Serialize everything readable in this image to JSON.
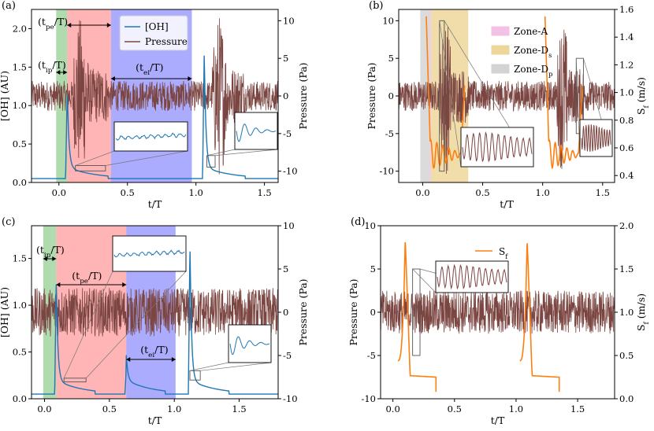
{
  "colors": {
    "oh": "#1f77b4",
    "pressure": "#7b4541",
    "sf": "#ff7f0e",
    "zone_ip": "#2ca02c",
    "zone_pe": "#ff3c3c",
    "zone_ei": "#2626ff",
    "zone_a": "#e377c2",
    "zone_ds": "#d9a520",
    "zone_dp": "#a0a0a0"
  },
  "chart_data": [
    {
      "id": "a",
      "type": "line",
      "panel_label": "(a)",
      "xlabel": "t/T",
      "ylabel_left": "[OH] (AU)",
      "ylabel_right": "Pressure (Pa)",
      "xlim": [
        -0.2,
        1.6
      ],
      "ylim_left": [
        0,
        2.25
      ],
      "ylim_right": [
        -11.5,
        11.5
      ],
      "xticks": [
        "0.0",
        "0.5",
        "1.0",
        "1.5"
      ],
      "xtick_values": [
        0,
        0.5,
        1.0,
        1.5
      ],
      "yticks_left": [
        "0.0",
        "0.5",
        "1.0",
        "1.5",
        "2.0"
      ],
      "ytick_values_left": [
        0,
        0.5,
        1.0,
        1.5,
        2.0
      ],
      "yticks_right": [
        "-10",
        "-5",
        "0",
        "5",
        "10"
      ],
      "ytick_values_right": [
        -10,
        -5,
        0,
        5,
        10
      ],
      "legend": [
        "[OH]",
        "Pressure"
      ],
      "zones": [
        {
          "name": "ip",
          "x0": -0.02,
          "x1": 0.06
        },
        {
          "name": "pe",
          "x0": 0.06,
          "x1": 0.38
        },
        {
          "name": "ei",
          "x0": 0.38,
          "x1": 0.97
        }
      ],
      "annotations": [
        {
          "label": "(tpe/T)",
          "base": "(t",
          "sub": "pe",
          "tail": "/T)"
        },
        {
          "label": "(tip/T)",
          "base": "(t",
          "sub": "ip",
          "tail": "/T)"
        },
        {
          "label": "(tei/T)",
          "base": "(t",
          "sub": "ei",
          "tail": "/T)"
        }
      ],
      "oh_series": {
        "baseline": 0.05,
        "peaks": [
          {
            "t": 0.06,
            "v": 1.15
          },
          {
            "t": 1.06,
            "v": 1.65
          }
        ]
      },
      "pressure_series": {
        "noise_amplitude": 2,
        "bursts": [
          {
            "t0": 0.1,
            "t1": 0.36,
            "amp": 10.5
          },
          {
            "t0": 1.12,
            "t1": 1.36,
            "amp": 11
          }
        ]
      }
    },
    {
      "id": "b",
      "type": "line",
      "panel_label": "(b)",
      "xlabel": "t/T",
      "ylabel_left": "Pressure (Pa)",
      "ylabel_right": "Sf (m/s)",
      "ylabel_right_base": "S",
      "ylabel_right_sub": "f",
      "ylabel_right_tail": " (m/s)",
      "xlim": [
        -0.2,
        1.6
      ],
      "ylim_left": [
        -11.5,
        11.5
      ],
      "ylim_right": [
        0.35,
        1.6
      ],
      "xticks": [
        "0.0",
        "0.5",
        "1.0",
        "1.5"
      ],
      "xtick_values": [
        0,
        0.5,
        1.0,
        1.5
      ],
      "yticks_left": [
        "-10",
        "-5",
        "0",
        "5",
        "10"
      ],
      "ytick_values_left": [
        -10,
        -5,
        0,
        5,
        10
      ],
      "yticks_right": [
        "0.4",
        "0.6",
        "0.8",
        "1.0",
        "1.2",
        "1.4",
        "1.6"
      ],
      "ytick_values_right": [
        0.4,
        0.6,
        0.8,
        1.0,
        1.2,
        1.4,
        1.6
      ],
      "legend": [
        "Zone-A",
        "Zone-Ds",
        "Zone-Dp"
      ],
      "legend_parts": [
        {
          "base": "Zone-A",
          "sub": ""
        },
        {
          "base": "Zone-D",
          "sub": "s"
        },
        {
          "base": "Zone-D",
          "sub": "p"
        }
      ],
      "zones": [
        {
          "name": "dp",
          "x0": -0.02,
          "x1": 0.06
        },
        {
          "name": "a",
          "x0": 0.06,
          "x1": 0.07
        },
        {
          "name": "ds",
          "x0": 0.07,
          "x1": 0.38
        }
      ],
      "pressure_series": {
        "noise_amplitude": 2,
        "bursts": [
          {
            "t0": 0.14,
            "t1": 0.38,
            "amp": 10.5
          },
          {
            "t0": 1.12,
            "t1": 1.34,
            "amp": 10.5
          }
        ]
      }
    },
    {
      "id": "c",
      "type": "line",
      "panel_label": "(c)",
      "xlabel": "t/T",
      "ylabel_left": "[OH] (AU)",
      "ylabel_right": "Pressure (Pa)",
      "xlim": [
        -0.1,
        1.8
      ],
      "ylim_left": [
        0,
        1.85
      ],
      "ylim_right": [
        -10,
        10
      ],
      "xticks": [
        "0.0",
        "0.5",
        "1.0",
        "1.5"
      ],
      "xtick_values": [
        0,
        0.5,
        1.0,
        1.5
      ],
      "yticks_left": [
        "0.0",
        "0.5",
        "1.0",
        "1.5"
      ],
      "ytick_values_left": [
        0,
        0.5,
        1.0,
        1.5
      ],
      "yticks_right": [
        "-10",
        "-5",
        "0",
        "5",
        "10"
      ],
      "ytick_values_right": [
        -10,
        -5,
        0,
        5,
        10
      ],
      "zones": [
        {
          "name": "ip",
          "x0": -0.01,
          "x1": 0.09
        },
        {
          "name": "pe",
          "x0": 0.09,
          "x1": 0.63
        },
        {
          "name": "ei",
          "x0": 0.63,
          "x1": 1.01
        }
      ],
      "annotations": [
        {
          "label": "(tip/T)",
          "base": "(t",
          "sub": "ip",
          "tail": "/T)"
        },
        {
          "label": "(tpe/T)",
          "base": "(t",
          "sub": "pe",
          "tail": "/T)"
        },
        {
          "label": "(tei/T)",
          "base": "(t",
          "sub": "ei",
          "tail": "/T)"
        }
      ],
      "oh_series": {
        "baseline": 0.05,
        "peaks": [
          {
            "t": 0.09,
            "v": 1.22
          },
          {
            "t": 0.63,
            "v": 0.32
          },
          {
            "t": 1.12,
            "v": 1.6
          }
        ]
      },
      "pressure_series": {
        "noise_amplitude": 2.8,
        "bursts": []
      }
    },
    {
      "id": "d",
      "type": "line",
      "panel_label": "(d)",
      "xlabel": "t/T",
      "ylabel_left": "Pressure (Pa)",
      "ylabel_right": "Sf (m/s)",
      "ylabel_right_base": "S",
      "ylabel_right_sub": "f",
      "ylabel_right_tail": " (m/s)",
      "xlim": [
        -0.1,
        1.8
      ],
      "ylim_left": [
        -10,
        10
      ],
      "ylim_right": [
        0,
        2
      ],
      "xticks": [
        "0.0",
        "0.5",
        "1.0",
        "1.5"
      ],
      "xtick_values": [
        0,
        0.5,
        1.0,
        1.5
      ],
      "yticks_left": [
        "-10",
        "-5",
        "0",
        "5",
        "10"
      ],
      "ytick_values_left": [
        -10,
        -5,
        0,
        5,
        10
      ],
      "yticks_right": [
        "0.0",
        "0.5",
        "1.0",
        "1.5",
        "2.0"
      ],
      "ytick_values_right": [
        0,
        0.5,
        1.0,
        1.5,
        2.0
      ],
      "legend": [
        "Sf"
      ],
      "legend_parts": [
        {
          "base": "S",
          "sub": "f"
        }
      ],
      "pressure_series": {
        "noise_amplitude": 2.5,
        "bursts": []
      },
      "sf_cycles": [
        {
          "t0": 0.04,
          "peak_t": 0.1,
          "peak": 1.85,
          "end_t": 0.35
        },
        {
          "t0": 1.03,
          "peak_t": 1.09,
          "peak": 1.85,
          "end_t": 1.35
        }
      ]
    }
  ]
}
